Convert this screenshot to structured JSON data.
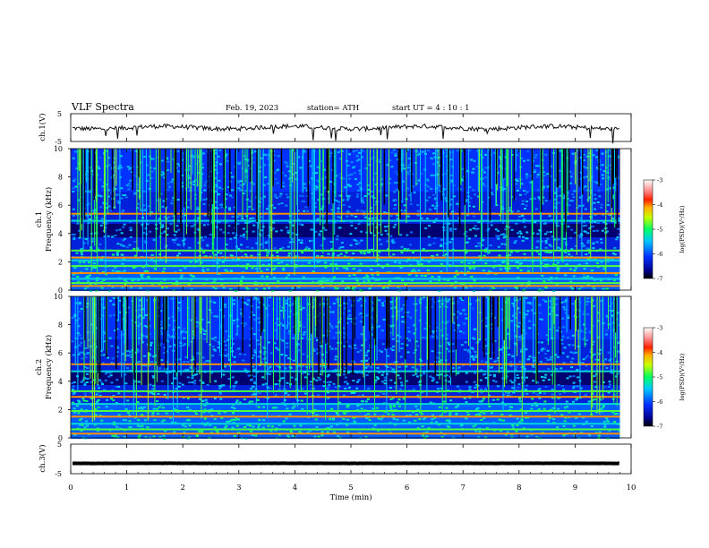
{
  "header": {
    "title": "VLF  Spectra",
    "date": "Feb. 19, 2023",
    "station": "station= ATH",
    "start": "start  UT  =   4  : 10 : 1"
  },
  "chart_data": [
    {
      "type": "line",
      "name": "ch1-waveform",
      "ylabel": "ch.1(V)",
      "ylim": [
        -5,
        5
      ],
      "yticks": [
        "5",
        "-5"
      ],
      "xlim": [
        0,
        10
      ],
      "baseline": 0
    },
    {
      "type": "heatmap",
      "name": "ch1-spectrogram",
      "ylabel": "ch.1\nFrequency  (kHz)",
      "ylim": [
        0,
        10
      ],
      "yticks": [
        "0",
        "2",
        "4",
        "6",
        "8",
        "10"
      ],
      "xlim": [
        0,
        9.8
      ],
      "colorbar": {
        "label": "log(PSD)(V²/Hz)",
        "range": [
          -7,
          -3
        ],
        "ticks": [
          "-3",
          "-4",
          "-5",
          "-6",
          "-7"
        ]
      },
      "bands_khz": [
        0.3,
        0.5,
        0.8,
        1.2,
        1.7,
        2.1,
        2.3,
        2.8,
        4.9,
        5.4
      ]
    },
    {
      "type": "heatmap",
      "name": "ch2-spectrogram",
      "ylabel": "ch.2\nFrequency  (kHz)",
      "ylim": [
        0,
        10
      ],
      "yticks": [
        "0",
        "2",
        "4",
        "6",
        "8",
        "10"
      ],
      "xlim": [
        0,
        9.8
      ],
      "colorbar": {
        "label": "log(PSD)(V²/Hz)",
        "range": [
          -7,
          -3
        ],
        "ticks": [
          "-3",
          "-4",
          "-5",
          "-6",
          "-7"
        ]
      },
      "bands_khz": [
        0.3,
        0.6,
        1.0,
        1.5,
        1.9,
        2.4,
        2.9,
        3.3,
        4.7,
        5.2
      ]
    },
    {
      "type": "line",
      "name": "ch3-waveform",
      "ylabel": "ch.3(V)",
      "ylim": [
        -5,
        5
      ],
      "yticks": [
        "5",
        "-5"
      ],
      "xlim": [
        0,
        10
      ],
      "baseline": -1.5
    }
  ],
  "xaxis": {
    "label": "Time  (min)",
    "ticks": [
      "0",
      "1",
      "2",
      "3",
      "4",
      "5",
      "6",
      "7",
      "8",
      "9",
      "10"
    ],
    "range": [
      0,
      10
    ]
  },
  "colorbar_label": "log(PSD)(V²/Hz)"
}
